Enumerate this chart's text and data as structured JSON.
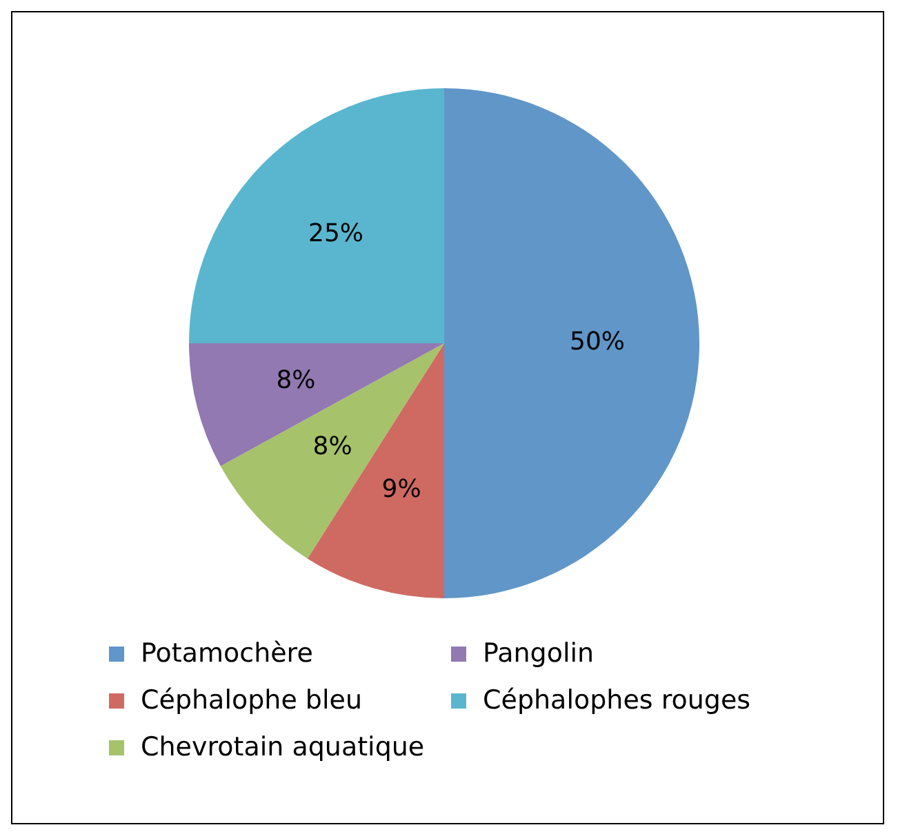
{
  "chart_data": {
    "type": "pie",
    "categories": [
      "Potamochère",
      "Céphalophe bleu",
      "Chevrotain aquatique",
      "Pangolin",
      "Céphalophes rouges"
    ],
    "values": [
      50,
      9,
      8,
      8,
      25
    ],
    "colors": [
      "#6096c8",
      "#cf6a63",
      "#a6c26a",
      "#9279b1",
      "#5ab6cf"
    ],
    "value_labels": [
      "50%",
      "9%",
      "8%",
      "8%",
      "25%"
    ],
    "legend": "bottom"
  }
}
